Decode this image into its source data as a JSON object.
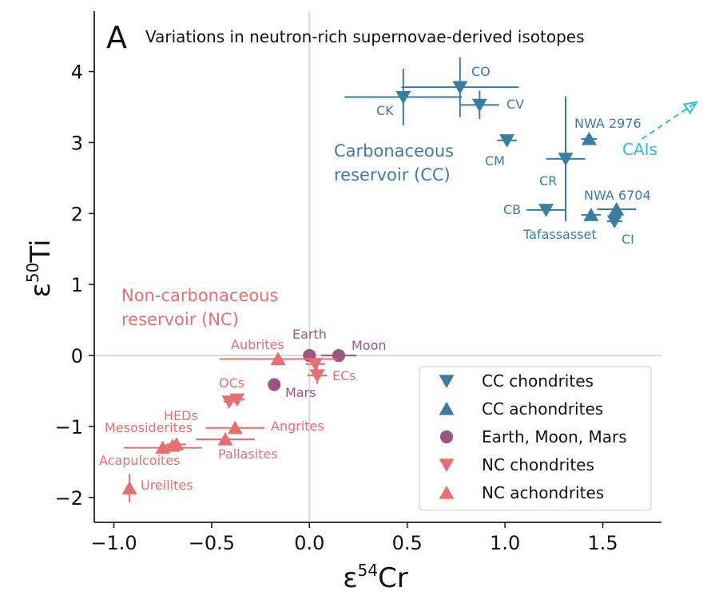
{
  "panel_letter": "A",
  "chart_data": {
    "type": "scatter",
    "title": "Variations in neutron-rich supernovae-derived isotopes",
    "xlabel": "ε54Cr",
    "ylabel": "ε50Ti",
    "xlim": [
      -1.1,
      1.8
    ],
    "ylim": [
      -2.35,
      4.85
    ],
    "xticks": [
      "−1.0",
      "−0.5",
      "0.0",
      "0.5",
      "1.0",
      "1.5"
    ],
    "xtick_values": [
      -1.0,
      -0.5,
      0.0,
      0.5,
      1.0,
      1.5
    ],
    "yticks": [
      "−2",
      "−1",
      "0",
      "1",
      "2",
      "3",
      "4"
    ],
    "ytick_values": [
      -2,
      -1,
      0,
      1,
      2,
      3,
      4
    ],
    "grid": false,
    "zero_lines": true,
    "legend_position": "lower-right",
    "colors": {
      "cc": "#3a7da3",
      "earth": "#9a5680",
      "nc": "#e76f72",
      "cai": "#2ec0c6",
      "axis": "#222222",
      "zero_line": "#cfdcdc"
    },
    "region_labels": {
      "cc": [
        "Carbonaceous",
        "reservoir (CC)"
      ],
      "nc": [
        "Non-carbonaceous",
        "reservoir (NC)"
      ]
    },
    "legend": [
      {
        "label": "CC chondrites",
        "marker": "tri-down",
        "group": "cc"
      },
      {
        "label": "CC achondrites",
        "marker": "tri-up",
        "group": "cc"
      },
      {
        "label": "Earth, Moon, Mars",
        "marker": "circle",
        "group": "earth"
      },
      {
        "label": "NC chondrites",
        "marker": "tri-down",
        "group": "nc"
      },
      {
        "label": "NC achondrites",
        "marker": "tri-up",
        "group": "nc"
      }
    ],
    "cai": {
      "label": "CAIs",
      "from": [
        1.7,
        3.05
      ],
      "to": [
        1.98,
        3.57
      ]
    },
    "series": [
      {
        "name": "CC chondrites",
        "marker": "tri-down",
        "group": "cc",
        "points": [
          {
            "label": "CO",
            "x": 0.77,
            "y": 3.78,
            "xerr": 0.3,
            "yerr": 0.42
          },
          {
            "label": "CK",
            "x": 0.48,
            "y": 3.64,
            "xerr": 0.3,
            "yerr": 0.4
          },
          {
            "label": "CV",
            "x": 0.87,
            "y": 3.53,
            "xerr": 0.1,
            "yerr": 0.2
          },
          {
            "label": "CM",
            "x": 1.01,
            "y": 3.03,
            "xerr": 0.05,
            "yerr": 0.05
          },
          {
            "label": "CR",
            "x": 1.31,
            "y": 2.77,
            "xerr": 0.1,
            "yerr": 0.88
          },
          {
            "label": "CB",
            "x": 1.21,
            "y": 2.05,
            "xerr": 0.1,
            "yerr": 0.05
          },
          {
            "label": "CI",
            "x": 1.56,
            "y": 1.89,
            "xerr": 0.04,
            "yerr": 0.07
          }
        ]
      },
      {
        "name": "CC achondrites",
        "marker": "tri-up",
        "group": "cc",
        "points": [
          {
            "label": "NWA 2976",
            "x": 1.43,
            "y": 3.05,
            "xerr": 0.04,
            "yerr": 0.05
          },
          {
            "label": "NWA 6704",
            "x": 1.57,
            "y": 2.06,
            "xerr": 0.1,
            "yerr": 0.04
          },
          {
            "label": "Tafassasset",
            "x": 1.44,
            "y": 1.98,
            "xerr": 0.05,
            "yerr": 0.04
          }
        ]
      },
      {
        "name": "Earth, Moon, Mars",
        "marker": "circle",
        "group": "earth",
        "points": [
          {
            "label": "Earth",
            "x": 0.0,
            "y": 0.0,
            "xerr": 0.0,
            "yerr": 0.0
          },
          {
            "label": "Moon",
            "x": 0.15,
            "y": 0.0,
            "xerr": 0.09,
            "yerr": 0.0
          },
          {
            "label": "Mars",
            "x": -0.18,
            "y": -0.41,
            "xerr": 0.0,
            "yerr": 0.0
          }
        ]
      },
      {
        "name": "NC chondrites",
        "marker": "tri-down",
        "group": "nc",
        "points": [
          {
            "label": "OCs",
            "x": -0.37,
            "y": -0.62,
            "xerr": 0.04,
            "yerr": 0.05
          },
          {
            "label": "",
            "x": -0.41,
            "y": -0.65,
            "xerr": 0.03,
            "yerr": 0.05
          },
          {
            "label": "ECs",
            "x": 0.04,
            "y": -0.28,
            "xerr": 0.05,
            "yerr": 0.12
          },
          {
            "label": "",
            "x": 0.03,
            "y": -0.12,
            "xerr": 0.05,
            "yerr": 0.05
          }
        ]
      },
      {
        "name": "NC achondrites",
        "marker": "tri-up",
        "group": "nc",
        "points": [
          {
            "label": "Aubrites",
            "x": -0.16,
            "y": -0.05,
            "xerr": 0.3,
            "yerr": 0.05
          },
          {
            "label": "HEDs",
            "x": -0.7,
            "y": -1.27,
            "xerr": 0.04,
            "yerr": 0.05
          },
          {
            "label": "Mesosiderites",
            "x": -0.68,
            "y": -1.25,
            "xerr": 0.05,
            "yerr": 0.05
          },
          {
            "label": "Angrites",
            "x": -0.38,
            "y": -1.02,
            "xerr": 0.15,
            "yerr": 0.05
          },
          {
            "label": "Pallasites",
            "x": -0.43,
            "y": -1.18,
            "xerr": 0.15,
            "yerr": 0.05
          },
          {
            "label": "Acapulcoites",
            "x": -0.75,
            "y": -1.3,
            "xerr": 0.2,
            "yerr": 0.05
          },
          {
            "label": "Ureilites",
            "x": -0.92,
            "y": -1.87,
            "xerr": 0.0,
            "yerr": 0.2
          }
        ]
      }
    ]
  }
}
